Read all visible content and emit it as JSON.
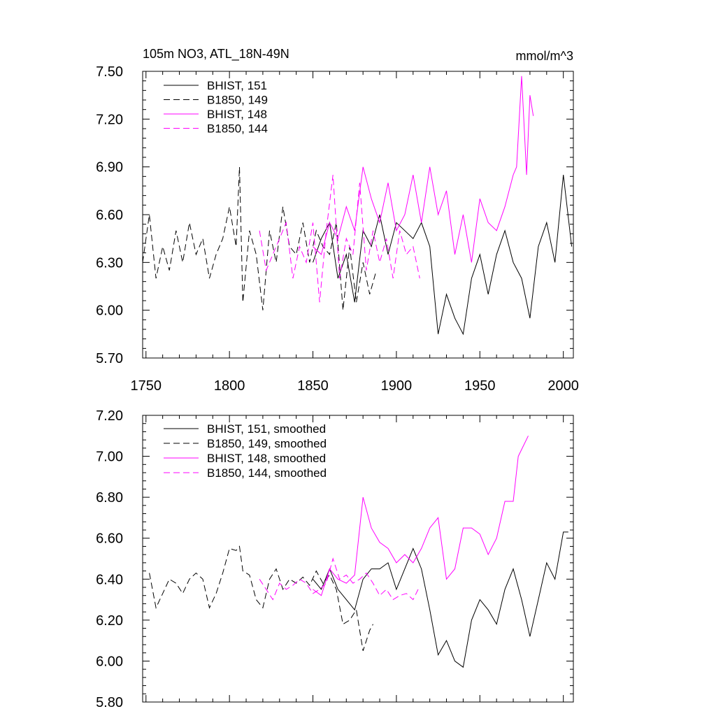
{
  "chart_data": [
    {
      "type": "line",
      "title": "105m NO3, ATL_18N-49N",
      "units": "mmol/m^3",
      "xlim": [
        1748,
        2006
      ],
      "ylim": [
        5.7,
        7.5
      ],
      "xticks": [
        1750,
        1800,
        1850,
        1900,
        1950,
        2000
      ],
      "yticks": [
        5.7,
        6.0,
        6.3,
        6.6,
        6.9,
        7.2,
        7.5
      ],
      "ytick_labels": [
        "5.70",
        "6.00",
        "6.30",
        "6.60",
        "6.90",
        "7.20",
        "7.50"
      ],
      "legend_position": "top-left",
      "series": [
        {
          "name": "BHIST, 151",
          "color": "#000000",
          "dash": "solid",
          "x": [
            1850,
            1855,
            1860,
            1865,
            1870,
            1875,
            1880,
            1885,
            1890,
            1895,
            1900,
            1905,
            1910,
            1915,
            1920,
            1925,
            1930,
            1935,
            1940,
            1945,
            1950,
            1955,
            1960,
            1965,
            1970,
            1975,
            1980,
            1985,
            1990,
            1995,
            2000,
            2005
          ],
          "y": [
            6.3,
            6.45,
            6.55,
            6.2,
            6.35,
            6.05,
            6.5,
            6.4,
            6.6,
            6.35,
            6.55,
            6.5,
            6.45,
            6.55,
            6.4,
            5.85,
            6.1,
            5.95,
            5.85,
            6.2,
            6.35,
            6.1,
            6.35,
            6.5,
            6.3,
            6.2,
            5.95,
            6.4,
            6.55,
            6.3,
            6.85,
            6.4
          ]
        },
        {
          "name": "B1850, 149",
          "color": "#000000",
          "dash": "dashed",
          "x": [
            1748,
            1752,
            1756,
            1760,
            1764,
            1768,
            1772,
            1776,
            1780,
            1784,
            1788,
            1792,
            1796,
            1800,
            1804,
            1806,
            1808,
            1812,
            1816,
            1820,
            1824,
            1828,
            1832,
            1836,
            1840,
            1844,
            1848,
            1852,
            1856,
            1860,
            1864,
            1868,
            1872,
            1876,
            1880,
            1884,
            1888
          ],
          "y": [
            6.3,
            6.6,
            6.2,
            6.4,
            6.25,
            6.5,
            6.3,
            6.55,
            6.35,
            6.45,
            6.2,
            6.35,
            6.45,
            6.65,
            6.4,
            6.9,
            6.05,
            6.5,
            6.35,
            6.0,
            6.5,
            6.3,
            6.65,
            6.4,
            6.35,
            6.55,
            6.3,
            6.5,
            6.4,
            6.35,
            6.55,
            6.0,
            6.4,
            6.05,
            6.3,
            6.1,
            6.25
          ]
        },
        {
          "name": "BHIST, 148",
          "color": "#ff00ff",
          "dash": "solid",
          "x": [
            1850,
            1855,
            1860,
            1865,
            1870,
            1875,
            1880,
            1885,
            1890,
            1895,
            1900,
            1905,
            1910,
            1915,
            1920,
            1925,
            1930,
            1935,
            1940,
            1945,
            1950,
            1955,
            1960,
            1965,
            1970,
            1972,
            1975,
            1978,
            1980,
            1982
          ],
          "y": [
            6.4,
            6.35,
            6.55,
            6.45,
            6.65,
            6.5,
            6.9,
            6.7,
            6.55,
            6.8,
            6.5,
            6.6,
            6.85,
            6.55,
            6.9,
            6.6,
            6.75,
            6.35,
            6.6,
            6.3,
            6.7,
            6.55,
            6.5,
            6.65,
            6.85,
            6.9,
            7.47,
            6.85,
            7.35,
            7.22
          ]
        },
        {
          "name": "B1850, 144",
          "color": "#ff00ff",
          "dash": "dashed",
          "x": [
            1818,
            1822,
            1826,
            1830,
            1834,
            1838,
            1842,
            1846,
            1850,
            1854,
            1858,
            1862,
            1866,
            1870,
            1874,
            1878,
            1882,
            1886,
            1890,
            1894,
            1898,
            1902,
            1906,
            1910,
            1914
          ],
          "y": [
            6.5,
            6.25,
            6.35,
            6.45,
            6.55,
            6.2,
            6.4,
            6.3,
            6.55,
            6.05,
            6.5,
            6.85,
            6.2,
            6.45,
            6.35,
            6.8,
            6.25,
            6.5,
            6.3,
            6.45,
            6.2,
            6.5,
            6.35,
            6.4,
            6.2
          ]
        }
      ]
    },
    {
      "type": "line",
      "xlim": [
        1748,
        2006
      ],
      "ylim": [
        5.8,
        7.2
      ],
      "xticks": [
        1750,
        1800,
        1850,
        1900,
        1950,
        2000
      ],
      "yticks": [
        5.8,
        6.0,
        6.2,
        6.4,
        6.6,
        6.8,
        7.0,
        7.2
      ],
      "ytick_labels": [
        "5.80",
        "6.00",
        "6.20",
        "6.40",
        "6.60",
        "6.80",
        "7.00",
        "7.20"
      ],
      "legend_position": "top-left",
      "series": [
        {
          "name": "BHIST, 151, smoothed",
          "color": "#000000",
          "dash": "solid",
          "x": [
            1850,
            1855,
            1860,
            1865,
            1870,
            1875,
            1880,
            1885,
            1890,
            1895,
            1900,
            1905,
            1910,
            1915,
            1920,
            1925,
            1930,
            1935,
            1940,
            1945,
            1950,
            1955,
            1960,
            1965,
            1970,
            1975,
            1980,
            1985,
            1990,
            1995,
            2000,
            2003
          ],
          "y": [
            6.4,
            6.35,
            6.45,
            6.35,
            6.3,
            6.25,
            6.4,
            6.45,
            6.45,
            6.48,
            6.35,
            6.45,
            6.55,
            6.45,
            6.25,
            6.03,
            6.1,
            6.0,
            5.97,
            6.2,
            6.3,
            6.25,
            6.18,
            6.35,
            6.45,
            6.3,
            6.12,
            6.3,
            6.48,
            6.4,
            6.63,
            6.63
          ]
        },
        {
          "name": "B1850, 149, smoothed",
          "color": "#000000",
          "dash": "dashed",
          "x": [
            1752,
            1756,
            1760,
            1764,
            1768,
            1772,
            1776,
            1780,
            1784,
            1788,
            1792,
            1796,
            1800,
            1804,
            1806,
            1808,
            1812,
            1816,
            1820,
            1824,
            1828,
            1832,
            1836,
            1840,
            1844,
            1848,
            1852,
            1856,
            1860,
            1864,
            1868,
            1872,
            1876,
            1880,
            1884,
            1886
          ],
          "y": [
            6.43,
            6.26,
            6.33,
            6.4,
            6.38,
            6.33,
            6.4,
            6.43,
            6.4,
            6.26,
            6.33,
            6.43,
            6.55,
            6.54,
            6.56,
            6.44,
            6.42,
            6.3,
            6.26,
            6.4,
            6.45,
            6.35,
            6.4,
            6.38,
            6.41,
            6.37,
            6.44,
            6.38,
            6.42,
            6.35,
            6.18,
            6.2,
            6.25,
            6.05,
            6.15,
            6.18
          ]
        },
        {
          "name": "BHIST, 148, smoothed",
          "color": "#ff00ff",
          "dash": "solid",
          "x": [
            1850,
            1855,
            1860,
            1865,
            1870,
            1875,
            1880,
            1885,
            1890,
            1895,
            1900,
            1905,
            1910,
            1915,
            1920,
            1925,
            1930,
            1935,
            1940,
            1945,
            1950,
            1955,
            1960,
            1965,
            1970,
            1973,
            1976,
            1979
          ],
          "y": [
            6.35,
            6.32,
            6.45,
            6.4,
            6.38,
            6.42,
            6.8,
            6.65,
            6.58,
            6.55,
            6.48,
            6.52,
            6.48,
            6.55,
            6.65,
            6.7,
            6.4,
            6.45,
            6.65,
            6.65,
            6.62,
            6.52,
            6.6,
            6.78,
            6.78,
            7.0,
            7.05,
            7.1
          ]
        },
        {
          "name": "B1850, 144, smoothed",
          "color": "#ff00ff",
          "dash": "dashed",
          "x": [
            1818,
            1822,
            1826,
            1830,
            1834,
            1838,
            1842,
            1846,
            1850,
            1854,
            1858,
            1862,
            1866,
            1870,
            1874,
            1878,
            1882,
            1886,
            1890,
            1894,
            1898,
            1902,
            1906,
            1910,
            1913
          ],
          "y": [
            6.4,
            6.35,
            6.3,
            6.38,
            6.35,
            6.37,
            6.4,
            6.38,
            6.33,
            6.35,
            6.38,
            6.5,
            6.4,
            6.42,
            6.38,
            6.4,
            6.43,
            6.38,
            6.32,
            6.35,
            6.3,
            6.32,
            6.33,
            6.3,
            6.35
          ]
        }
      ]
    }
  ]
}
